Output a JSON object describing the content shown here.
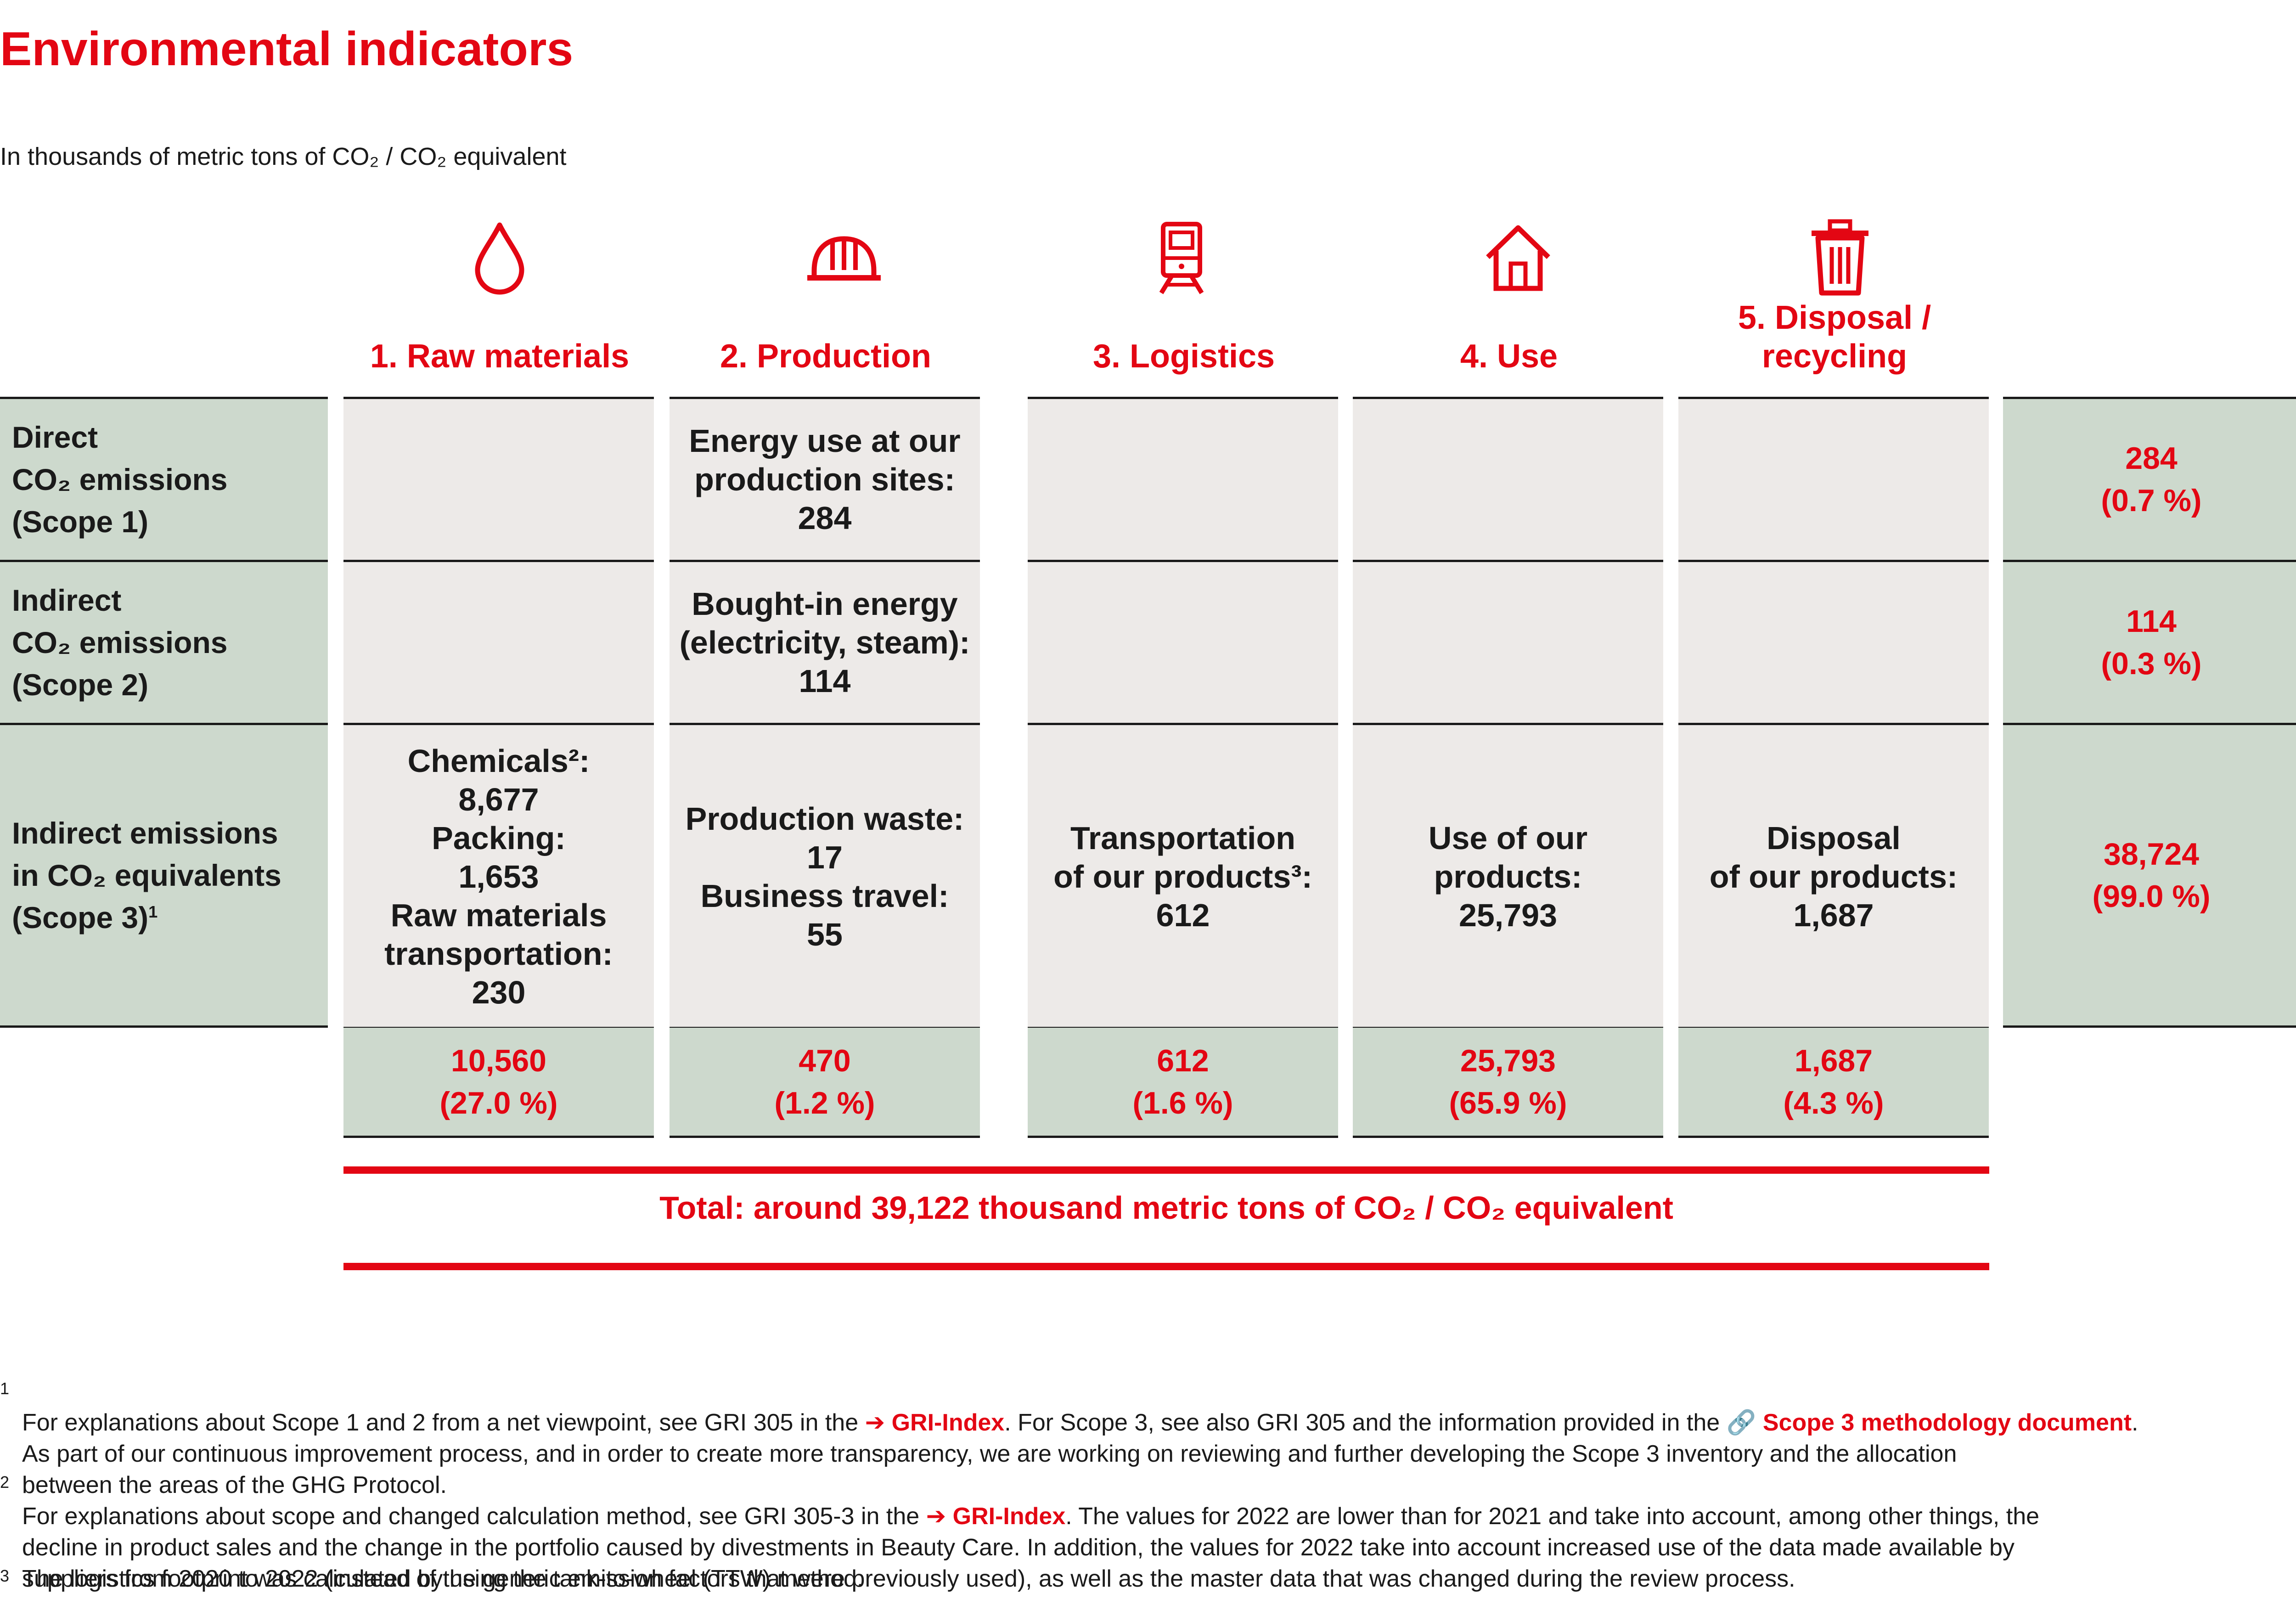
{
  "title": "Environmental indicators",
  "subtitle": "In thousands of metric tons of CO₂ / CO₂ equivalent",
  "columns": [
    {
      "label": "1. Raw materials",
      "icon": "drop-icon"
    },
    {
      "label": "2. Production",
      "icon": "hard-hat-icon"
    },
    {
      "label": "3. Logistics",
      "icon": "train-icon"
    },
    {
      "label": "4. Use",
      "icon": "house-icon"
    },
    {
      "label": "5. Disposal /\nrecycling",
      "icon": "trash-bin-icon"
    }
  ],
  "rows": [
    {
      "label": "Direct\nCO₂ emissions\n(Scope 1)",
      "total": "284\n(0.7 %)"
    },
    {
      "label": "Indirect\nCO₂ emissions\n(Scope 2)",
      "total": "114\n(0.3 %)"
    },
    {
      "label": "Indirect emissions\nin CO₂ equivalents\n(Scope 3)",
      "footnote_ref": "1",
      "total": "38,724\n(99.0 %)"
    }
  ],
  "cells": {
    "scope1": [
      "",
      "Energy use at our\nproduction sites:\n284",
      "",
      "",
      ""
    ],
    "scope2": [
      "",
      "Bought-in energy\n(electricity, steam):\n114",
      "",
      "",
      ""
    ],
    "scope3": [
      "Chemicals²:\n8,677\nPacking:\n1,653\nRaw materials\ntransportation:\n230",
      "Production waste:\n17\nBusiness travel:\n55",
      "Transportation\nof our products³:\n612",
      "Use of our\nproducts:\n25,793",
      "Disposal\nof our products:\n1,687"
    ]
  },
  "column_totals": [
    "10,560\n(27.0 %)",
    "470\n(1.2 %)",
    "612\n(1.6 %)",
    "25,793\n(65.9 %)",
    "1,687\n(4.3 %)"
  ],
  "total": "Total: around 39,122 thousand metric tons of CO₂ / CO₂ equivalent",
  "colors": {
    "accent": "#e30613",
    "green": "#cdd9cd",
    "grey": "#edeae8"
  },
  "footnotes": [
    {
      "num": "1",
      "t1": "For explanations about Scope 1 and 2 from a net viewpoint, see GRI 305 in the ",
      "l1": "GRI-Index",
      "t2": ". For Scope 3, see also GRI 305 and the information provided in the ",
      "l2": "Scope 3 methodology document",
      "t3": ".\nAs part of our continuous improvement process, and in order to create more transparency, we are working on reviewing and further developing the Scope 3 inventory and the allocation\nbetween the areas of the GHG Protocol."
    },
    {
      "num": "2",
      "t1": "For explanations about scope and changed calculation method, see GRI 305-3 in the ",
      "l1": "GRI-Index",
      "t2": ". The values for 2022 are lower than for 2021 and take into account, among other things, the\ndecline in product sales and the change in the portfolio caused by divestments in Beauty Care. In addition, the values for 2022 take into account increased use of the data made available by\nsuppliers from 2020 to 2022 (instead of the generic emission factors that were previously used), as well as the master data that was changed during the review process."
    },
    {
      "num": "3",
      "t1": "The logistics footprint was calculated by using the tank-to-wheel (TTW) method."
    }
  ]
}
